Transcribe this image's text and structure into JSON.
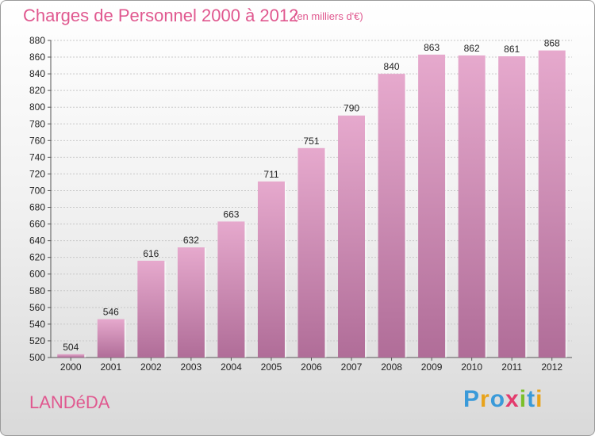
{
  "title": "Charges de Personnel 2000 à 2012",
  "subtitle": "(en milliers d'€)",
  "place": "LANDéDA",
  "logo": {
    "text": "Proxiti",
    "letter_colors": [
      "#3a9ad9",
      "#e8a31b",
      "#3a9ad9",
      "#e33b6d",
      "#7bbf2a",
      "#3a9ad9",
      "#e8a31b"
    ]
  },
  "colors": {
    "title": "#e0588f",
    "bar_top": "#e6a9cd",
    "bar_bottom": "#b06d98",
    "grid": "#c8c8c8"
  },
  "chart_data": {
    "type": "bar",
    "categories": [
      "2000",
      "2001",
      "2002",
      "2003",
      "2004",
      "2005",
      "2006",
      "2007",
      "2008",
      "2009",
      "2010",
      "2011",
      "2012"
    ],
    "values": [
      504,
      546,
      616,
      632,
      663,
      711,
      751,
      790,
      840,
      863,
      862,
      861,
      868
    ],
    "data_labels": [
      "504",
      "546",
      "616",
      "632",
      "663",
      "711",
      "751",
      "790",
      "840",
      "863",
      "862",
      "861",
      "868"
    ],
    "title": "Charges de Personnel 2000 à 2012",
    "subtitle": "(en milliers d'€)",
    "xlabel": "",
    "ylabel": "",
    "ylim": [
      500,
      880
    ],
    "yticks": [
      500,
      520,
      540,
      560,
      580,
      600,
      620,
      640,
      660,
      680,
      700,
      720,
      740,
      760,
      780,
      800,
      820,
      840,
      860,
      880
    ],
    "grid": true,
    "legend": "none"
  }
}
